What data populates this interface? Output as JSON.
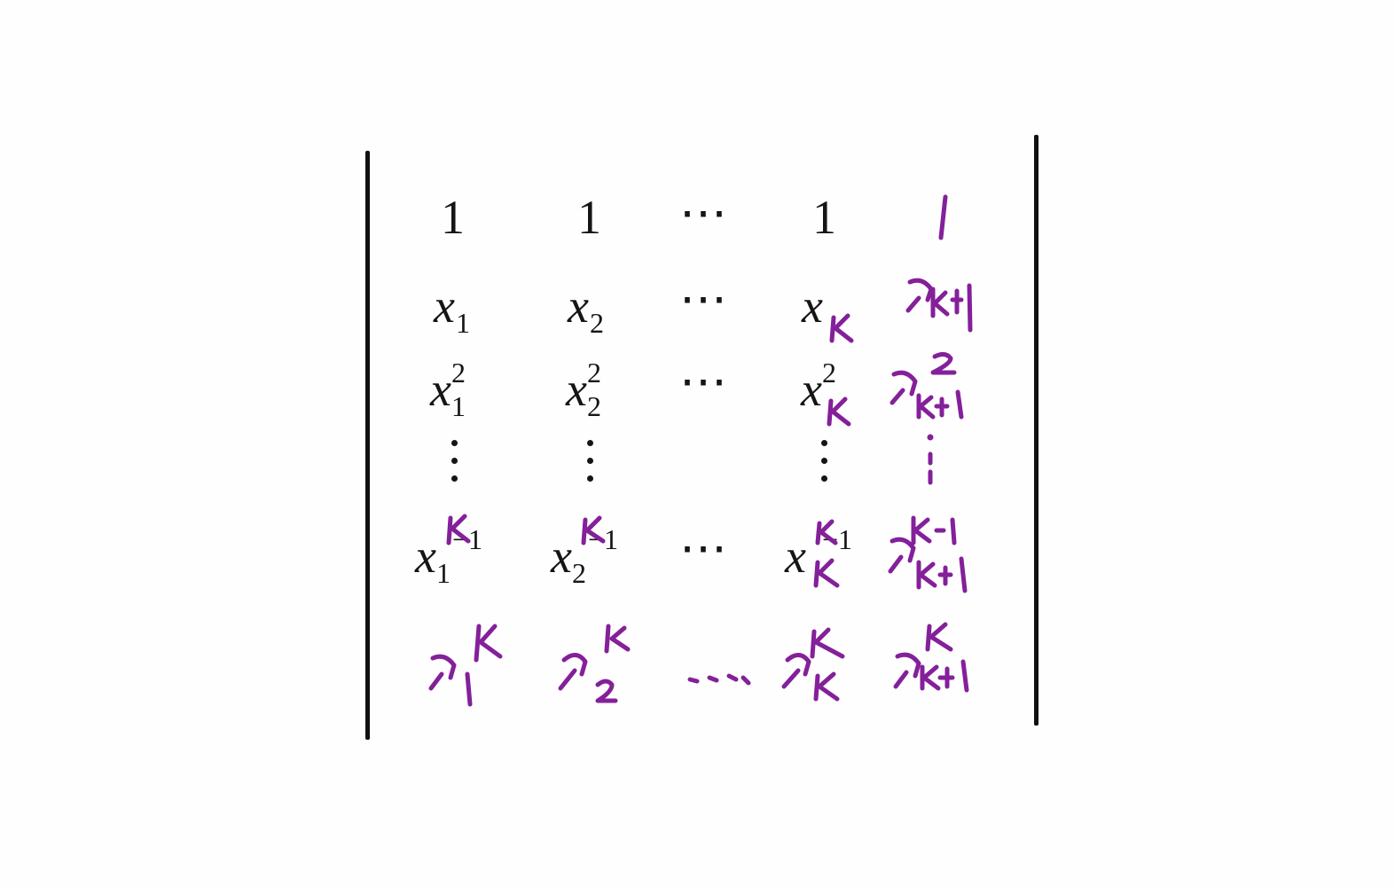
{
  "matrix": {
    "rows": [
      {
        "cells": [
          {
            "base": "1"
          },
          {
            "base": "1"
          },
          {
            "dots": "⋯"
          },
          {
            "base": "1"
          }
        ]
      },
      {
        "cells": [
          {
            "base": "x",
            "sub": "1"
          },
          {
            "base": "x",
            "sub": "2"
          },
          {
            "dots": "⋯"
          },
          {
            "base": "x"
          }
        ]
      },
      {
        "cells": [
          {
            "base": "x",
            "sub": "1",
            "sup": "2"
          },
          {
            "base": "x",
            "sub": "2",
            "sup": "2"
          },
          {
            "dots": "⋯"
          },
          {
            "base": "x",
            "sup": "2"
          }
        ]
      },
      {
        "cells": [
          {
            "vdots": true
          },
          {
            "vdots": true
          },
          {},
          {
            "vdots": true
          }
        ]
      },
      {
        "cells": [
          {
            "base": "x",
            "sub": "1",
            "sup": "−1"
          },
          {
            "base": "x",
            "sub": "2",
            "sup": "−1"
          },
          {
            "dots": "⋯"
          },
          {
            "base": "x",
            "sup": "−1"
          }
        ]
      }
    ],
    "handwritten": {
      "note": "Purple handwritten additions drawn as ink strokes; values below are the handwritten text",
      "col_last": [
        "1",
        "x_{k+1}",
        "x_{k+1}^2",
        "⋮",
        "x_{k+1}^{k-1}",
        "x_{k+1}^k"
      ],
      "row_last": [
        "x_1^k",
        "x_2^k",
        "…",
        "x_k^k",
        "x_{k+1}^k"
      ],
      "index_corrections": [
        "k",
        "k",
        "k"
      ],
      "ink_color": "#84209a"
    }
  }
}
